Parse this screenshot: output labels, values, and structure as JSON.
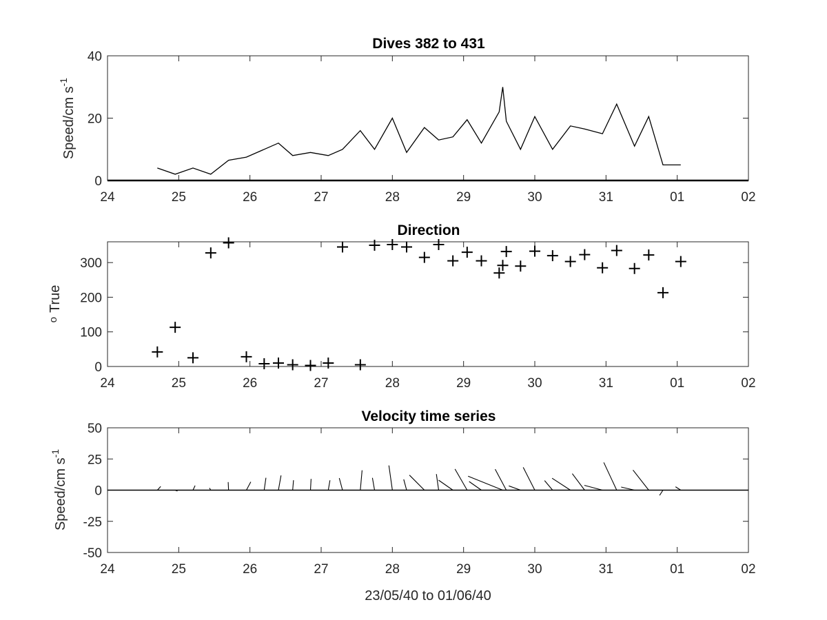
{
  "chart_data": [
    {
      "type": "line",
      "title": "Dives 382 to 431",
      "xlabel": "",
      "ylabel": "Speed/cm s",
      "ylabel_superscript": "-1",
      "xlim": [
        24,
        33
      ],
      "ylim": [
        0,
        40
      ],
      "yticks": [
        "0",
        "20",
        "40"
      ],
      "xticks": [
        "24",
        "25",
        "26",
        "27",
        "28",
        "29",
        "30",
        "31",
        "01",
        "02"
      ],
      "grid": false,
      "series": [
        {
          "x": [
            24.7,
            24.95,
            25.2,
            25.45,
            25.7,
            25.95,
            26.2,
            26.4,
            26.6,
            26.85,
            27.1,
            27.3,
            27.55,
            27.75,
            28.0,
            28.2,
            28.45,
            28.65,
            28.85,
            29.05,
            29.25,
            29.5,
            29.55,
            29.6,
            29.8,
            30.0,
            30.25,
            30.5,
            30.7,
            30.95,
            31.15,
            31.4,
            31.6,
            31.8,
            32.05
          ],
          "y": [
            4,
            2,
            4,
            2,
            6.5,
            7.5,
            10,
            12,
            8,
            9,
            8,
            10,
            16,
            10,
            20,
            9,
            17,
            13,
            14,
            19.5,
            12,
            22,
            30,
            19,
            10,
            20.5,
            10,
            17.5,
            16.5,
            15,
            24.5,
            11,
            20.5,
            5,
            5
          ]
        }
      ]
    },
    {
      "type": "scatter",
      "title": "Direction",
      "xlabel": "",
      "ylabel": "True",
      "ylabel_superscript": "o",
      "xlim": [
        24,
        33
      ],
      "ylim": [
        0,
        360
      ],
      "yticks": [
        "0",
        "100",
        "200",
        "300"
      ],
      "xticks": [
        "24",
        "25",
        "26",
        "27",
        "28",
        "29",
        "30",
        "31",
        "01",
        "02"
      ],
      "grid": false,
      "series": [
        {
          "marker": "+",
          "x": [
            24.7,
            24.95,
            25.2,
            25.45,
            25.7,
            25.95,
            26.2,
            26.4,
            26.6,
            26.85,
            27.1,
            27.3,
            27.55,
            27.75,
            28.0,
            28.2,
            28.45,
            28.65,
            28.85,
            29.05,
            29.25,
            29.5,
            29.55,
            29.6,
            29.8,
            30.0,
            30.25,
            30.5,
            30.7,
            30.95,
            31.15,
            31.4,
            31.6,
            31.8,
            32.05
          ],
          "y": [
            42,
            113,
            25,
            328,
            357,
            28,
            8,
            10,
            5,
            3,
            10,
            345,
            5,
            350,
            352,
            345,
            315,
            352,
            305,
            330,
            305,
            270,
            292,
            332,
            290,
            333,
            320,
            303,
            323,
            285,
            335,
            283,
            322,
            213,
            303
          ]
        }
      ]
    },
    {
      "type": "quiver",
      "title": "Velocity time series",
      "xlabel": "23/05/40 to 01/06/40",
      "ylabel": "Speed/cm s",
      "ylabel_superscript": "-1",
      "xlim": [
        24,
        33
      ],
      "ylim": [
        -50,
        50
      ],
      "yticks": [
        "-50",
        "-25",
        "0",
        "25",
        "50"
      ],
      "xticks": [
        "24",
        "25",
        "26",
        "27",
        "28",
        "29",
        "30",
        "31",
        "01",
        "02"
      ],
      "grid": false,
      "vectors": {
        "x": [
          24.7,
          24.95,
          25.2,
          25.45,
          25.7,
          25.95,
          26.2,
          26.4,
          26.6,
          26.85,
          27.1,
          27.3,
          27.55,
          27.75,
          28.0,
          28.2,
          28.45,
          28.65,
          28.85,
          29.05,
          29.25,
          29.5,
          29.55,
          29.6,
          29.8,
          30.0,
          30.25,
          30.5,
          30.7,
          30.95,
          31.15,
          31.4,
          31.6,
          31.8,
          32.05
        ],
        "speed": [
          4,
          2,
          4,
          2,
          6.5,
          7.5,
          10,
          12,
          8,
          9,
          8,
          10,
          16,
          10,
          20,
          9,
          17,
          13,
          14,
          19.5,
          12,
          22,
          30,
          19,
          10,
          20.5,
          10,
          17.5,
          16.5,
          15,
          24.5,
          11,
          20.5,
          5,
          5
        ],
        "direction_deg": [
          42,
          113,
          25,
          328,
          357,
          28,
          8,
          10,
          5,
          3,
          10,
          345,
          5,
          350,
          352,
          345,
          315,
          352,
          305,
          330,
          305,
          270,
          292,
          332,
          290,
          333,
          320,
          303,
          323,
          285,
          335,
          283,
          322,
          213,
          303
        ]
      }
    }
  ]
}
